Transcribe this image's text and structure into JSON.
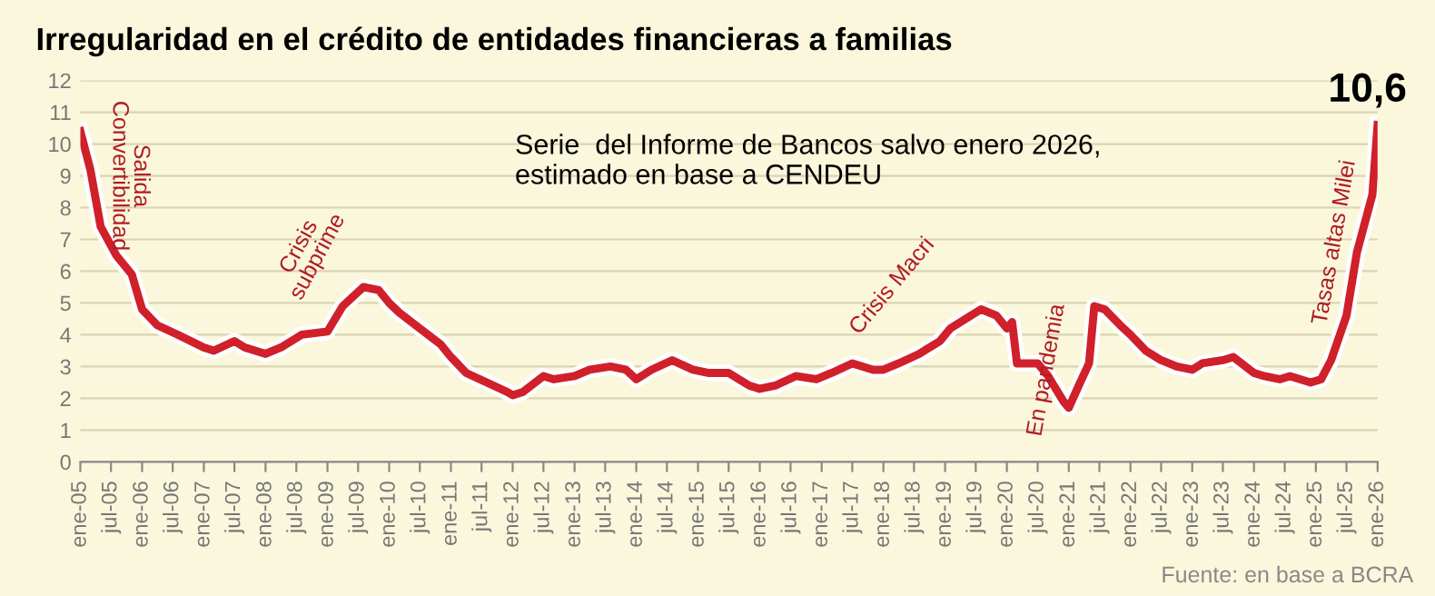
{
  "chart_data": {
    "type": "line",
    "title": "Irregularidad en el crédito de entidades financieras a familias",
    "x": [
      "2005-01",
      "2005-03",
      "2005-05",
      "2005-08",
      "2005-11",
      "2006-01",
      "2006-04",
      "2006-08",
      "2007-01",
      "2007-03",
      "2007-07",
      "2007-09",
      "2008-01",
      "2008-04",
      "2008-08",
      "2009-01",
      "2009-04",
      "2009-08",
      "2009-11",
      "2010-01",
      "2010-03",
      "2010-07",
      "2010-11",
      "2011-01",
      "2011-04",
      "2011-08",
      "2011-12",
      "2012-01",
      "2012-03",
      "2012-07",
      "2012-09",
      "2013-01",
      "2013-04",
      "2013-08",
      "2013-11",
      "2014-01",
      "2014-04",
      "2014-08",
      "2014-12",
      "2015-03",
      "2015-07",
      "2015-11",
      "2016-01",
      "2016-04",
      "2016-08",
      "2016-12",
      "2017-03",
      "2017-07",
      "2017-11",
      "2018-01",
      "2018-04",
      "2018-08",
      "2018-12",
      "2019-02",
      "2019-06",
      "2019-08",
      "2019-11",
      "2020-01",
      "2020-02",
      "2020-03",
      "2020-07",
      "2020-09",
      "2020-12",
      "2021-01",
      "2021-03",
      "2021-05",
      "2021-06",
      "2021-08",
      "2021-11",
      "2022-01",
      "2022-04",
      "2022-07",
      "2022-10",
      "2023-01",
      "2023-03",
      "2023-07",
      "2023-09",
      "2024-01",
      "2024-03",
      "2024-06",
      "2024-08",
      "2024-12",
      "2025-02",
      "2025-04",
      "2025-07",
      "2025-09",
      "2025-12",
      "2026-01"
    ],
    "series": [
      {
        "color": "#d0202a",
        "values": [
          10.4,
          9.2,
          7.4,
          6.5,
          5.9,
          4.8,
          4.3,
          4.0,
          3.6,
          3.5,
          3.8,
          3.6,
          3.4,
          3.6,
          4.0,
          4.1,
          4.9,
          5.5,
          5.4,
          5.0,
          4.7,
          4.2,
          3.7,
          3.3,
          2.8,
          2.5,
          2.2,
          2.1,
          2.2,
          2.7,
          2.6,
          2.7,
          2.9,
          3.0,
          2.9,
          2.6,
          2.9,
          3.2,
          2.9,
          2.8,
          2.8,
          2.4,
          2.3,
          2.4,
          2.7,
          2.6,
          2.8,
          3.1,
          2.9,
          2.9,
          3.1,
          3.4,
          3.8,
          4.2,
          4.6,
          4.8,
          4.6,
          4.2,
          4.4,
          3.1,
          3.1,
          2.7,
          1.9,
          1.7,
          2.4,
          3.1,
          4.9,
          4.8,
          4.3,
          4.0,
          3.5,
          3.2,
          3.0,
          2.9,
          3.1,
          3.2,
          3.3,
          2.8,
          2.7,
          2.6,
          2.7,
          2.5,
          2.6,
          3.2,
          4.6,
          6.6,
          8.4,
          10.6
        ]
      }
    ],
    "xlim": [
      "2005-01",
      "2026-01"
    ],
    "xticks": [
      {
        "value": "2005-01",
        "label": "ene-05"
      },
      {
        "value": "2005-07",
        "label": "jul-05"
      },
      {
        "value": "2006-01",
        "label": "ene-06"
      },
      {
        "value": "2006-07",
        "label": "jul-06"
      },
      {
        "value": "2007-01",
        "label": "ene-07"
      },
      {
        "value": "2007-07",
        "label": "jul-07"
      },
      {
        "value": "2008-01",
        "label": "ene-08"
      },
      {
        "value": "2008-07",
        "label": "jul-08"
      },
      {
        "value": "2009-01",
        "label": "ene-09"
      },
      {
        "value": "2009-07",
        "label": "jul-09"
      },
      {
        "value": "2010-01",
        "label": "ene-10"
      },
      {
        "value": "2010-07",
        "label": "jul-10"
      },
      {
        "value": "2011-01",
        "label": "ene-11"
      },
      {
        "value": "2011-07",
        "label": "jul-11"
      },
      {
        "value": "2012-01",
        "label": "ene-12"
      },
      {
        "value": "2012-07",
        "label": "jul-12"
      },
      {
        "value": "2013-01",
        "label": "ene-13"
      },
      {
        "value": "2013-07",
        "label": "jul-13"
      },
      {
        "value": "2014-01",
        "label": "ene-14"
      },
      {
        "value": "2014-07",
        "label": "jul-14"
      },
      {
        "value": "2015-01",
        "label": "ene-15"
      },
      {
        "value": "2015-07",
        "label": "jul-15"
      },
      {
        "value": "2016-01",
        "label": "ene-16"
      },
      {
        "value": "2016-07",
        "label": "jul-16"
      },
      {
        "value": "2017-01",
        "label": "ene-17"
      },
      {
        "value": "2017-07",
        "label": "jul-17"
      },
      {
        "value": "2018-01",
        "label": "ene-18"
      },
      {
        "value": "2018-07",
        "label": "jul-18"
      },
      {
        "value": "2019-01",
        "label": "ene-19"
      },
      {
        "value": "2019-07",
        "label": "jul-19"
      },
      {
        "value": "2020-01",
        "label": "ene-20"
      },
      {
        "value": "2020-07",
        "label": "jul-20"
      },
      {
        "value": "2021-01",
        "label": "ene-21"
      },
      {
        "value": "2021-07",
        "label": "jul-21"
      },
      {
        "value": "2022-01",
        "label": "ene-22"
      },
      {
        "value": "2022-07",
        "label": "jul-22"
      },
      {
        "value": "2023-01",
        "label": "ene-23"
      },
      {
        "value": "2023-07",
        "label": "jul-23"
      },
      {
        "value": "2024-01",
        "label": "ene-24"
      },
      {
        "value": "2024-07",
        "label": "jul-24"
      },
      {
        "value": "2025-01",
        "label": "ene-25"
      },
      {
        "value": "2025-07",
        "label": "jul-25"
      },
      {
        "value": "2026-01",
        "label": "ene-26"
      }
    ],
    "ylim": [
      0,
      12
    ],
    "yticks": [
      0,
      1,
      2,
      3,
      4,
      5,
      6,
      7,
      8,
      9,
      10,
      11,
      12
    ],
    "grid": "y",
    "marker": "none",
    "line_style": "solid",
    "annotations": [
      "Salida\nConvertibilidad",
      "Crisis\nsubprime",
      "Crisis Macri",
      {
        "text": "En pandemia",
        "x": "2021-04",
        "y": 4.9
      },
      "Tasas altas Milei",
      {
        "text": "10,6",
        "x": "2026-01",
        "y": 10.6
      },
      "Serie  del Informe de Bancos salvo enero 2026,\nestimado en base a CENDEU",
      "Fuente: en base a BCRA"
    ]
  }
}
